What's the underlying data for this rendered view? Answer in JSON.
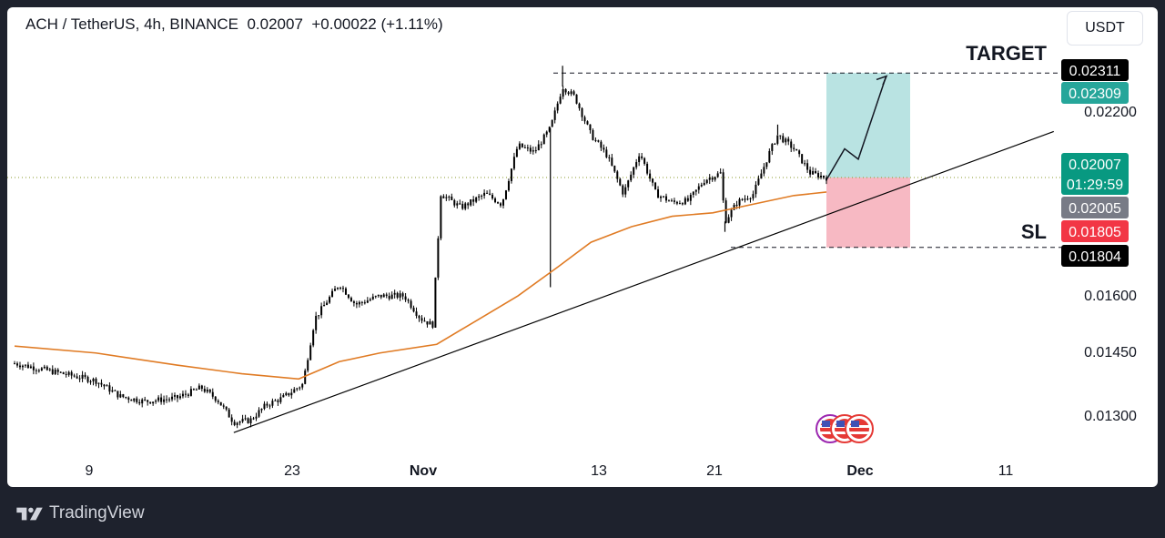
{
  "header": {
    "symbol": "ACH / TetherUS, 4h, BINANCE",
    "price": "0.02007",
    "change": "+0.00022 (+1.11%)"
  },
  "currency_button": "USDT",
  "footer": {
    "brand": "TradingView"
  },
  "colors": {
    "candle": "#000000",
    "moving_average": "#e07b24",
    "trendline": "#000000",
    "profit_zone": "#b9e3e2",
    "loss_zone": "#f7b9c3",
    "target_tag": "#26a69a",
    "entry_tag": "#089981",
    "sl_tag": "#f23645",
    "mid_tag": "#787b86",
    "black_tag": "#000000"
  },
  "chart_data": {
    "type": "candlestick",
    "title": "ACH / TetherUS, 4h, BINANCE",
    "x_ticks": [
      "9",
      "23",
      "Nov",
      "13",
      "21",
      "Dec",
      "11"
    ],
    "y_ticks": [
      "0.02200",
      "0.01600",
      "0.01450",
      "0.01300"
    ],
    "ylim": [
      0.0121,
      0.0242
    ],
    "price_path": [
      {
        "t": 0.0,
        "p": 0.0147
      },
      {
        "t": 0.05,
        "p": 0.01445
      },
      {
        "t": 0.1,
        "p": 0.0142
      },
      {
        "t": 0.13,
        "p": 0.01375
      },
      {
        "t": 0.16,
        "p": 0.0136
      },
      {
        "t": 0.2,
        "p": 0.0137
      },
      {
        "t": 0.23,
        "p": 0.014
      },
      {
        "t": 0.25,
        "p": 0.01365
      },
      {
        "t": 0.27,
        "p": 0.013
      },
      {
        "t": 0.29,
        "p": 0.01305
      },
      {
        "t": 0.31,
        "p": 0.0135
      },
      {
        "t": 0.33,
        "p": 0.0137
      },
      {
        "t": 0.355,
        "p": 0.0141
      },
      {
        "t": 0.37,
        "p": 0.016
      },
      {
        "t": 0.4,
        "p": 0.017
      },
      {
        "t": 0.42,
        "p": 0.0164
      },
      {
        "t": 0.45,
        "p": 0.01665
      },
      {
        "t": 0.48,
        "p": 0.01665
      },
      {
        "t": 0.5,
        "p": 0.016
      },
      {
        "t": 0.515,
        "p": 0.0158
      },
      {
        "t": 0.525,
        "p": 0.0196
      },
      {
        "t": 0.55,
        "p": 0.0192
      },
      {
        "t": 0.58,
        "p": 0.0196
      },
      {
        "t": 0.6,
        "p": 0.0193
      },
      {
        "t": 0.62,
        "p": 0.021
      },
      {
        "t": 0.64,
        "p": 0.0208
      },
      {
        "t": 0.66,
        "p": 0.0215
      },
      {
        "t": 0.675,
        "p": 0.0227
      },
      {
        "t": 0.69,
        "p": 0.0224
      },
      {
        "t": 0.71,
        "p": 0.0213
      },
      {
        "t": 0.73,
        "p": 0.0207
      },
      {
        "t": 0.75,
        "p": 0.0196
      },
      {
        "t": 0.77,
        "p": 0.0208
      },
      {
        "t": 0.79,
        "p": 0.0196
      },
      {
        "t": 0.81,
        "p": 0.01935
      },
      {
        "t": 0.83,
        "p": 0.0194
      },
      {
        "t": 0.85,
        "p": 0.02
      },
      {
        "t": 0.87,
        "p": 0.0202
      },
      {
        "t": 0.875,
        "p": 0.0188
      },
      {
        "t": 0.89,
        "p": 0.01935
      },
      {
        "t": 0.91,
        "p": 0.0196
      },
      {
        "t": 0.93,
        "p": 0.0208
      },
      {
        "t": 0.94,
        "p": 0.0213
      },
      {
        "t": 0.96,
        "p": 0.0209
      },
      {
        "t": 0.98,
        "p": 0.0202
      },
      {
        "t": 1.0,
        "p": 0.02007
      }
    ],
    "moving_average": [
      {
        "t": 0.0,
        "p": 0.0152
      },
      {
        "t": 0.1,
        "p": 0.015
      },
      {
        "t": 0.2,
        "p": 0.01465
      },
      {
        "t": 0.28,
        "p": 0.0144
      },
      {
        "t": 0.35,
        "p": 0.01425
      },
      {
        "t": 0.4,
        "p": 0.01475
      },
      {
        "t": 0.45,
        "p": 0.015
      },
      {
        "t": 0.52,
        "p": 0.01525
      },
      {
        "t": 0.57,
        "p": 0.01595
      },
      {
        "t": 0.62,
        "p": 0.01665
      },
      {
        "t": 0.67,
        "p": 0.0175
      },
      {
        "t": 0.71,
        "p": 0.0182
      },
      {
        "t": 0.76,
        "p": 0.01865
      },
      {
        "t": 0.81,
        "p": 0.01895
      },
      {
        "t": 0.86,
        "p": 0.01905
      },
      {
        "t": 0.92,
        "p": 0.01935
      },
      {
        "t": 0.96,
        "p": 0.01955
      },
      {
        "t": 1.0,
        "p": 0.01965
      }
    ],
    "trendline": [
      {
        "t": 0.27,
        "p": 0.0127
      },
      {
        "t": 1.28,
        "p": 0.0214
      }
    ],
    "trade_setup": {
      "entry": 0.02007,
      "target": 0.02309,
      "stop_loss": 0.01805,
      "target_label": "TARGET",
      "sl_label": "SL"
    },
    "price_labels": [
      {
        "text": "0.02311",
        "value": 0.02311,
        "role": "black"
      },
      {
        "text": "0.02309",
        "value": 0.02309,
        "role": "target"
      },
      {
        "text": "0.02007",
        "value": 0.02007,
        "role": "entry",
        "sub": "01:29:59"
      },
      {
        "text": "0.02005",
        "value": 0.02005,
        "role": "mid"
      },
      {
        "text": "0.01805",
        "value": 0.01805,
        "role": "sl"
      },
      {
        "text": "0.01804",
        "value": 0.01804,
        "role": "black"
      }
    ]
  }
}
